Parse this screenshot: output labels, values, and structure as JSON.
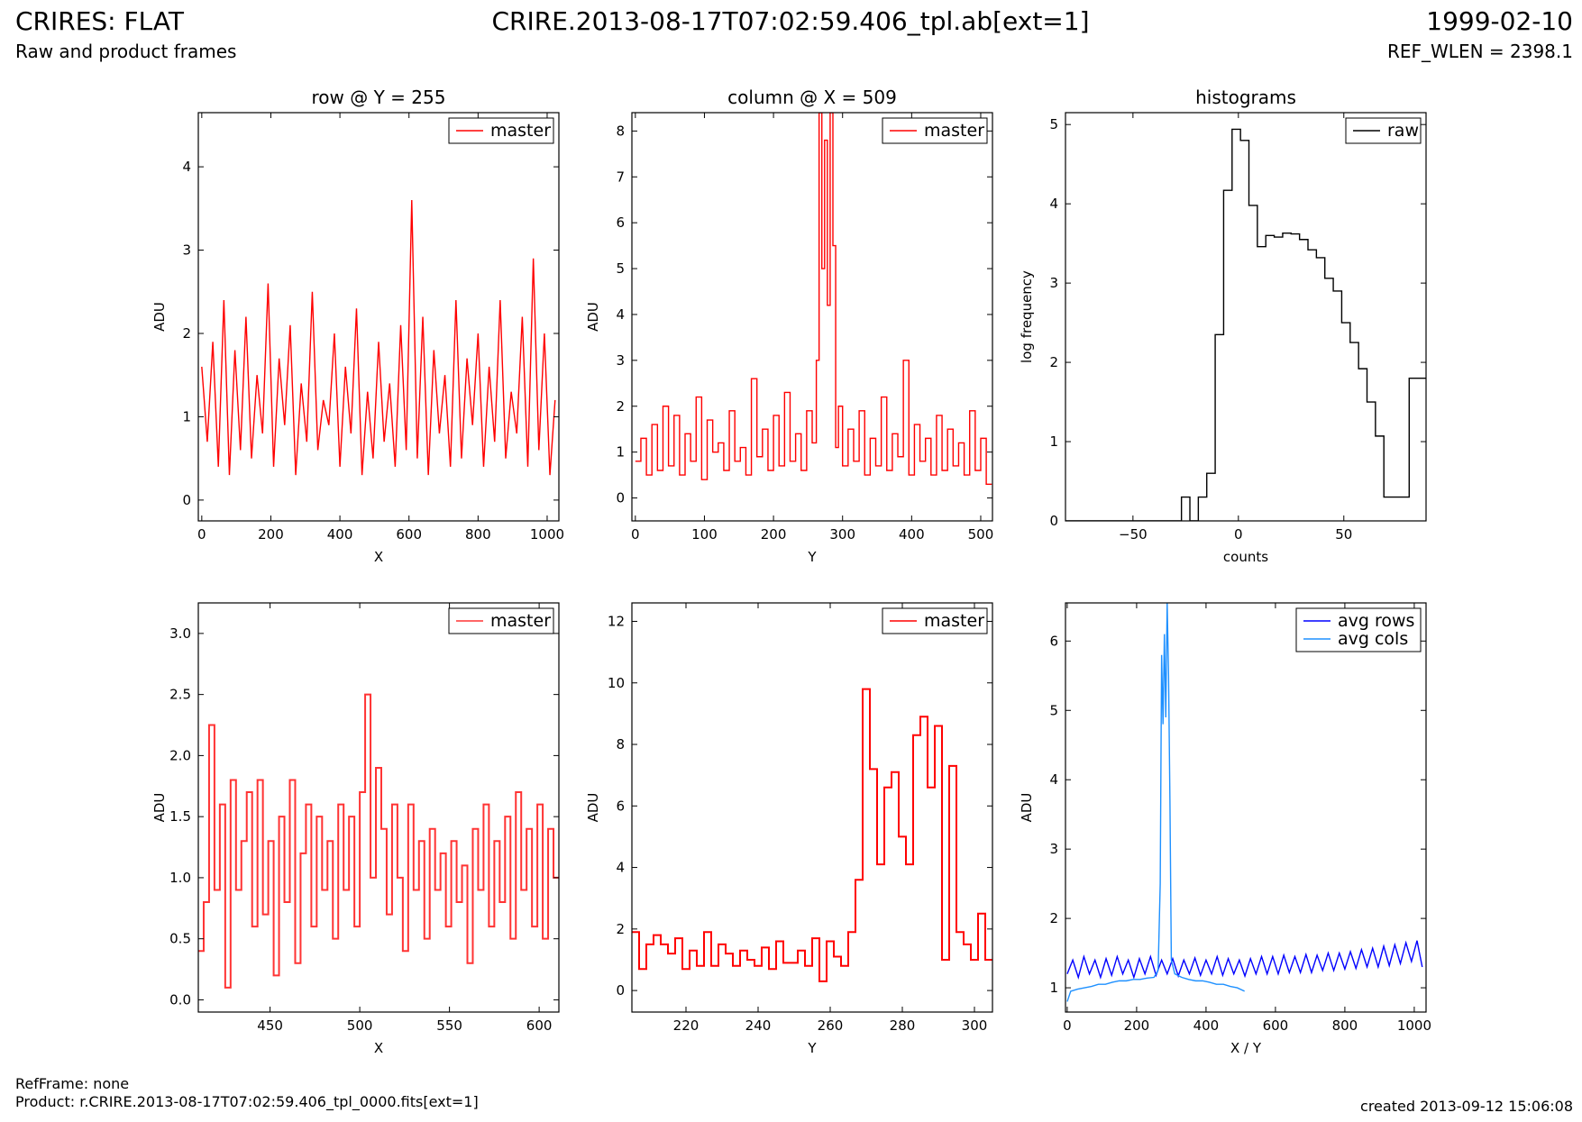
{
  "header": {
    "title_left": "CRIRES: FLAT",
    "subtitle_left": "Raw and product frames",
    "title_center": "CRIRE.2013-08-17T07:02:59.406_tpl.ab[ext=1]",
    "date_right": "1999-02-10",
    "refwlen_right": "REF_WLEN = 2398.1"
  },
  "footer": {
    "refframe": "RefFrame: none",
    "product": "Product: r.CRIRE.2013-08-17T07:02:59.406_tpl_0000.fits[ext=1]",
    "created": "created 2013-09-12 15:06:08"
  },
  "chart_data": [
    {
      "type": "line",
      "title": "row @ Y = 255",
      "xlabel": "X",
      "ylabel": "ADU",
      "xlim": [
        -10,
        1034
      ],
      "ylim": [
        -0.25,
        4.65
      ],
      "xticks": [
        0,
        200,
        400,
        600,
        800,
        1000
      ],
      "yticks": [
        0,
        1,
        2,
        3,
        4
      ],
      "legend": "top-right",
      "series": [
        {
          "name": "master",
          "color": "#ff0000",
          "style": "line",
          "x": [
            0,
            16,
            32,
            48,
            64,
            80,
            96,
            112,
            128,
            144,
            160,
            176,
            192,
            208,
            224,
            240,
            256,
            272,
            288,
            304,
            320,
            336,
            352,
            368,
            384,
            400,
            416,
            432,
            448,
            464,
            480,
            496,
            512,
            528,
            544,
            560,
            576,
            592,
            608,
            624,
            640,
            656,
            672,
            688,
            704,
            720,
            736,
            752,
            768,
            784,
            800,
            816,
            832,
            848,
            864,
            880,
            896,
            912,
            928,
            944,
            960,
            976,
            992,
            1008,
            1023
          ],
          "y": [
            1.6,
            0.7,
            1.9,
            0.4,
            2.4,
            0.3,
            1.8,
            0.6,
            2.2,
            0.5,
            1.5,
            0.8,
            2.6,
            0.4,
            1.7,
            0.9,
            2.1,
            0.3,
            1.4,
            0.7,
            2.5,
            0.6,
            1.2,
            0.9,
            2.0,
            0.4,
            1.6,
            0.8,
            2.3,
            0.3,
            1.3,
            0.5,
            1.9,
            0.7,
            1.4,
            0.4,
            2.1,
            0.6,
            3.6,
            0.5,
            2.2,
            0.3,
            1.8,
            0.8,
            1.5,
            0.4,
            2.4,
            0.5,
            1.7,
            0.9,
            2.0,
            0.4,
            1.6,
            0.7,
            2.4,
            0.5,
            1.3,
            0.8,
            2.2,
            0.4,
            2.9,
            0.6,
            2.0,
            0.3,
            1.2
          ]
        }
      ]
    },
    {
      "type": "line",
      "title": "column @ X = 509",
      "xlabel": "Y",
      "ylabel": "ADU",
      "xlim": [
        -5,
        517
      ],
      "ylim": [
        -0.5,
        8.4
      ],
      "xticks": [
        0,
        100,
        200,
        300,
        400,
        500
      ],
      "yticks": [
        0,
        1,
        2,
        3,
        4,
        5,
        6,
        7,
        8
      ],
      "legend": "top-right",
      "series": [
        {
          "name": "master",
          "color": "#ff0000",
          "style": "step",
          "x": [
            0,
            8,
            16,
            24,
            32,
            40,
            48,
            56,
            64,
            72,
            80,
            88,
            96,
            104,
            112,
            120,
            128,
            136,
            144,
            152,
            160,
            168,
            176,
            184,
            192,
            200,
            208,
            216,
            224,
            232,
            240,
            248,
            256,
            262,
            266,
            270,
            274,
            278,
            282,
            286,
            290,
            294,
            300,
            308,
            316,
            324,
            332,
            340,
            348,
            356,
            364,
            372,
            380,
            388,
            396,
            404,
            412,
            420,
            428,
            436,
            444,
            452,
            460,
            468,
            476,
            484,
            492,
            500,
            508
          ],
          "y": [
            0.8,
            1.3,
            0.5,
            1.6,
            0.6,
            2.0,
            0.7,
            1.8,
            0.5,
            1.4,
            0.8,
            2.2,
            0.4,
            1.7,
            1.0,
            1.2,
            0.6,
            1.9,
            0.8,
            1.1,
            0.5,
            2.6,
            0.9,
            1.5,
            0.6,
            1.8,
            0.7,
            2.3,
            0.8,
            1.4,
            0.6,
            1.9,
            1.2,
            3.0,
            8.4,
            5.0,
            7.8,
            4.2,
            8.4,
            5.5,
            1.1,
            2.0,
            0.7,
            1.5,
            0.8,
            1.9,
            0.5,
            1.3,
            0.7,
            2.2,
            0.6,
            1.4,
            0.9,
            3.0,
            0.5,
            1.6,
            0.8,
            1.3,
            0.5,
            1.8,
            0.6,
            1.5,
            0.7,
            1.2,
            0.5,
            1.9,
            0.6,
            1.3,
            0.3
          ]
        }
      ]
    },
    {
      "type": "line",
      "title": "histograms",
      "xlabel": "counts",
      "ylabel": "log frequency",
      "xlim": [
        -82,
        89
      ],
      "ylim": [
        0,
        5.15
      ],
      "xticks": [
        -50,
        0,
        50
      ],
      "yticks": [
        0,
        1,
        2,
        3,
        4,
        5
      ],
      "legend": "top-right",
      "series": [
        {
          "name": "raw",
          "color": "#000000",
          "style": "step",
          "x": [
            -82,
            -27,
            -23,
            -19,
            -15,
            -11,
            -7,
            -3,
            1,
            5,
            9,
            13,
            17,
            21,
            25,
            29,
            33,
            37,
            41,
            45,
            49,
            53,
            57,
            61,
            65,
            69,
            73,
            77,
            81,
            85,
            89
          ],
          "y": [
            0,
            0.3,
            0,
            0.3,
            0.6,
            2.35,
            4.17,
            4.94,
            4.8,
            3.98,
            3.46,
            3.6,
            3.58,
            3.63,
            3.62,
            3.55,
            3.42,
            3.32,
            3.06,
            2.9,
            2.5,
            2.25,
            1.92,
            1.5,
            1.07,
            0.3,
            0.3,
            0.3,
            1.8,
            1.8,
            1.8
          ]
        }
      ]
    },
    {
      "type": "line",
      "title": "",
      "xlabel": "X",
      "ylabel": "ADU",
      "xlim": [
        410,
        611
      ],
      "ylim": [
        -0.1,
        3.25
      ],
      "xticks": [
        450,
        500,
        550,
        600
      ],
      "yticks": [
        0.0,
        0.5,
        1.0,
        1.5,
        2.0,
        2.5,
        3.0
      ],
      "ytick_labels": [
        "0.0",
        "0.5",
        "1.0",
        "1.5",
        "2.0",
        "2.5",
        "3.0"
      ],
      "legend": "top-right",
      "series": [
        {
          "name": "master",
          "color": "#ff3333",
          "style": "step",
          "x": [
            410,
            413,
            416,
            419,
            422,
            425,
            428,
            431,
            434,
            437,
            440,
            443,
            446,
            449,
            452,
            455,
            458,
            461,
            464,
            467,
            470,
            473,
            476,
            479,
            482,
            485,
            488,
            491,
            494,
            497,
            500,
            503,
            506,
            509,
            512,
            515,
            518,
            521,
            524,
            527,
            530,
            533,
            536,
            539,
            542,
            545,
            548,
            551,
            554,
            557,
            560,
            563,
            566,
            569,
            572,
            575,
            578,
            581,
            584,
            587,
            590,
            593,
            596,
            599,
            602,
            605,
            608
          ],
          "y": [
            0.4,
            0.8,
            2.25,
            0.9,
            1.6,
            0.1,
            1.8,
            0.9,
            1.3,
            1.7,
            0.6,
            1.8,
            0.7,
            1.3,
            0.2,
            1.5,
            0.8,
            1.8,
            0.3,
            1.2,
            1.6,
            0.6,
            1.5,
            0.9,
            1.3,
            0.5,
            1.6,
            0.9,
            1.5,
            0.6,
            1.7,
            2.5,
            1.0,
            1.9,
            1.4,
            0.7,
            1.6,
            1.0,
            0.4,
            1.6,
            0.9,
            1.3,
            0.5,
            1.4,
            0.9,
            1.2,
            0.6,
            1.3,
            0.8,
            1.1,
            0.3,
            1.4,
            0.9,
            1.6,
            0.6,
            1.3,
            0.8,
            1.5,
            0.5,
            1.7,
            0.9,
            1.4,
            0.6,
            1.6,
            0.5,
            1.4,
            1.0
          ]
        }
      ]
    },
    {
      "type": "line",
      "title": "",
      "xlabel": "Y",
      "ylabel": "ADU",
      "xlim": [
        205,
        305
      ],
      "ylim": [
        -0.7,
        12.6
      ],
      "xticks": [
        220,
        240,
        260,
        280,
        300
      ],
      "yticks": [
        0,
        2,
        4,
        6,
        8,
        10,
        12
      ],
      "legend": "top-right",
      "series": [
        {
          "name": "master",
          "color": "#ff0000",
          "style": "step",
          "x": [
            205,
            207,
            209,
            211,
            213,
            215,
            217,
            219,
            221,
            223,
            225,
            227,
            229,
            231,
            233,
            235,
            237,
            239,
            241,
            243,
            245,
            247,
            249,
            251,
            253,
            255,
            257,
            259,
            261,
            263,
            265,
            267,
            269,
            271,
            273,
            275,
            277,
            279,
            281,
            283,
            285,
            287,
            289,
            291,
            293,
            295,
            297,
            299,
            301,
            303
          ],
          "y": [
            1.9,
            0.7,
            1.5,
            1.8,
            1.5,
            1.2,
            1.7,
            0.7,
            1.3,
            0.8,
            1.9,
            0.8,
            1.5,
            1.2,
            0.8,
            1.3,
            1.0,
            0.8,
            1.4,
            0.7,
            1.6,
            0.9,
            0.9,
            1.3,
            0.8,
            1.7,
            0.3,
            1.6,
            1.1,
            0.8,
            1.9,
            3.6,
            9.8,
            7.2,
            4.1,
            6.6,
            7.1,
            5.0,
            4.1,
            8.3,
            8.9,
            6.6,
            8.6,
            1.0,
            7.3,
            1.9,
            1.5,
            1.0,
            2.5,
            1.0
          ]
        }
      ]
    },
    {
      "type": "line",
      "title": "",
      "xlabel": "X / Y",
      "ylabel": "ADU",
      "xlim": [
        -5,
        1034
      ],
      "ylim": [
        0.65,
        6.55
      ],
      "xticks": [
        0,
        200,
        400,
        600,
        800,
        1000
      ],
      "yticks": [
        1,
        2,
        3,
        4,
        5,
        6
      ],
      "legend": "top-right",
      "series": [
        {
          "name": "avg rows",
          "color": "#0000ff",
          "style": "line",
          "x": [
            0,
            16,
            32,
            48,
            64,
            80,
            96,
            112,
            128,
            144,
            160,
            176,
            192,
            208,
            224,
            240,
            256,
            272,
            288,
            304,
            320,
            336,
            352,
            368,
            384,
            400,
            416,
            432,
            448,
            464,
            480,
            496,
            512,
            528,
            544,
            560,
            576,
            592,
            608,
            624,
            640,
            656,
            672,
            688,
            704,
            720,
            736,
            752,
            768,
            784,
            800,
            816,
            832,
            848,
            864,
            880,
            896,
            912,
            928,
            944,
            960,
            976,
            992,
            1008,
            1023
          ],
          "y": [
            1.2,
            1.4,
            1.15,
            1.45,
            1.2,
            1.4,
            1.15,
            1.42,
            1.18,
            1.45,
            1.2,
            1.4,
            1.15,
            1.42,
            1.2,
            1.45,
            1.18,
            1.4,
            1.2,
            1.42,
            1.17,
            1.4,
            1.2,
            1.43,
            1.18,
            1.4,
            1.2,
            1.45,
            1.18,
            1.42,
            1.2,
            1.4,
            1.17,
            1.42,
            1.2,
            1.45,
            1.2,
            1.45,
            1.2,
            1.47,
            1.22,
            1.45,
            1.22,
            1.48,
            1.22,
            1.47,
            1.25,
            1.5,
            1.25,
            1.5,
            1.27,
            1.52,
            1.28,
            1.55,
            1.3,
            1.57,
            1.3,
            1.6,
            1.32,
            1.62,
            1.35,
            1.65,
            1.38,
            1.68,
            1.3
          ]
        },
        {
          "name": "avg cols",
          "color": "#1e90ff",
          "style": "line",
          "x": [
            0,
            10,
            30,
            50,
            70,
            90,
            110,
            130,
            150,
            170,
            190,
            210,
            230,
            250,
            262,
            268,
            272,
            276,
            280,
            284,
            288,
            292,
            296,
            300,
            310,
            330,
            350,
            370,
            390,
            410,
            430,
            450,
            470,
            490,
            511
          ],
          "y": [
            0.8,
            0.95,
            0.98,
            1.0,
            1.02,
            1.05,
            1.05,
            1.08,
            1.1,
            1.1,
            1.12,
            1.12,
            1.14,
            1.15,
            1.25,
            2.5,
            5.8,
            4.8,
            6.1,
            4.9,
            6.55,
            5.5,
            3.7,
            1.4,
            1.2,
            1.15,
            1.12,
            1.1,
            1.1,
            1.08,
            1.05,
            1.05,
            1.02,
            1.0,
            0.95
          ]
        }
      ]
    }
  ]
}
